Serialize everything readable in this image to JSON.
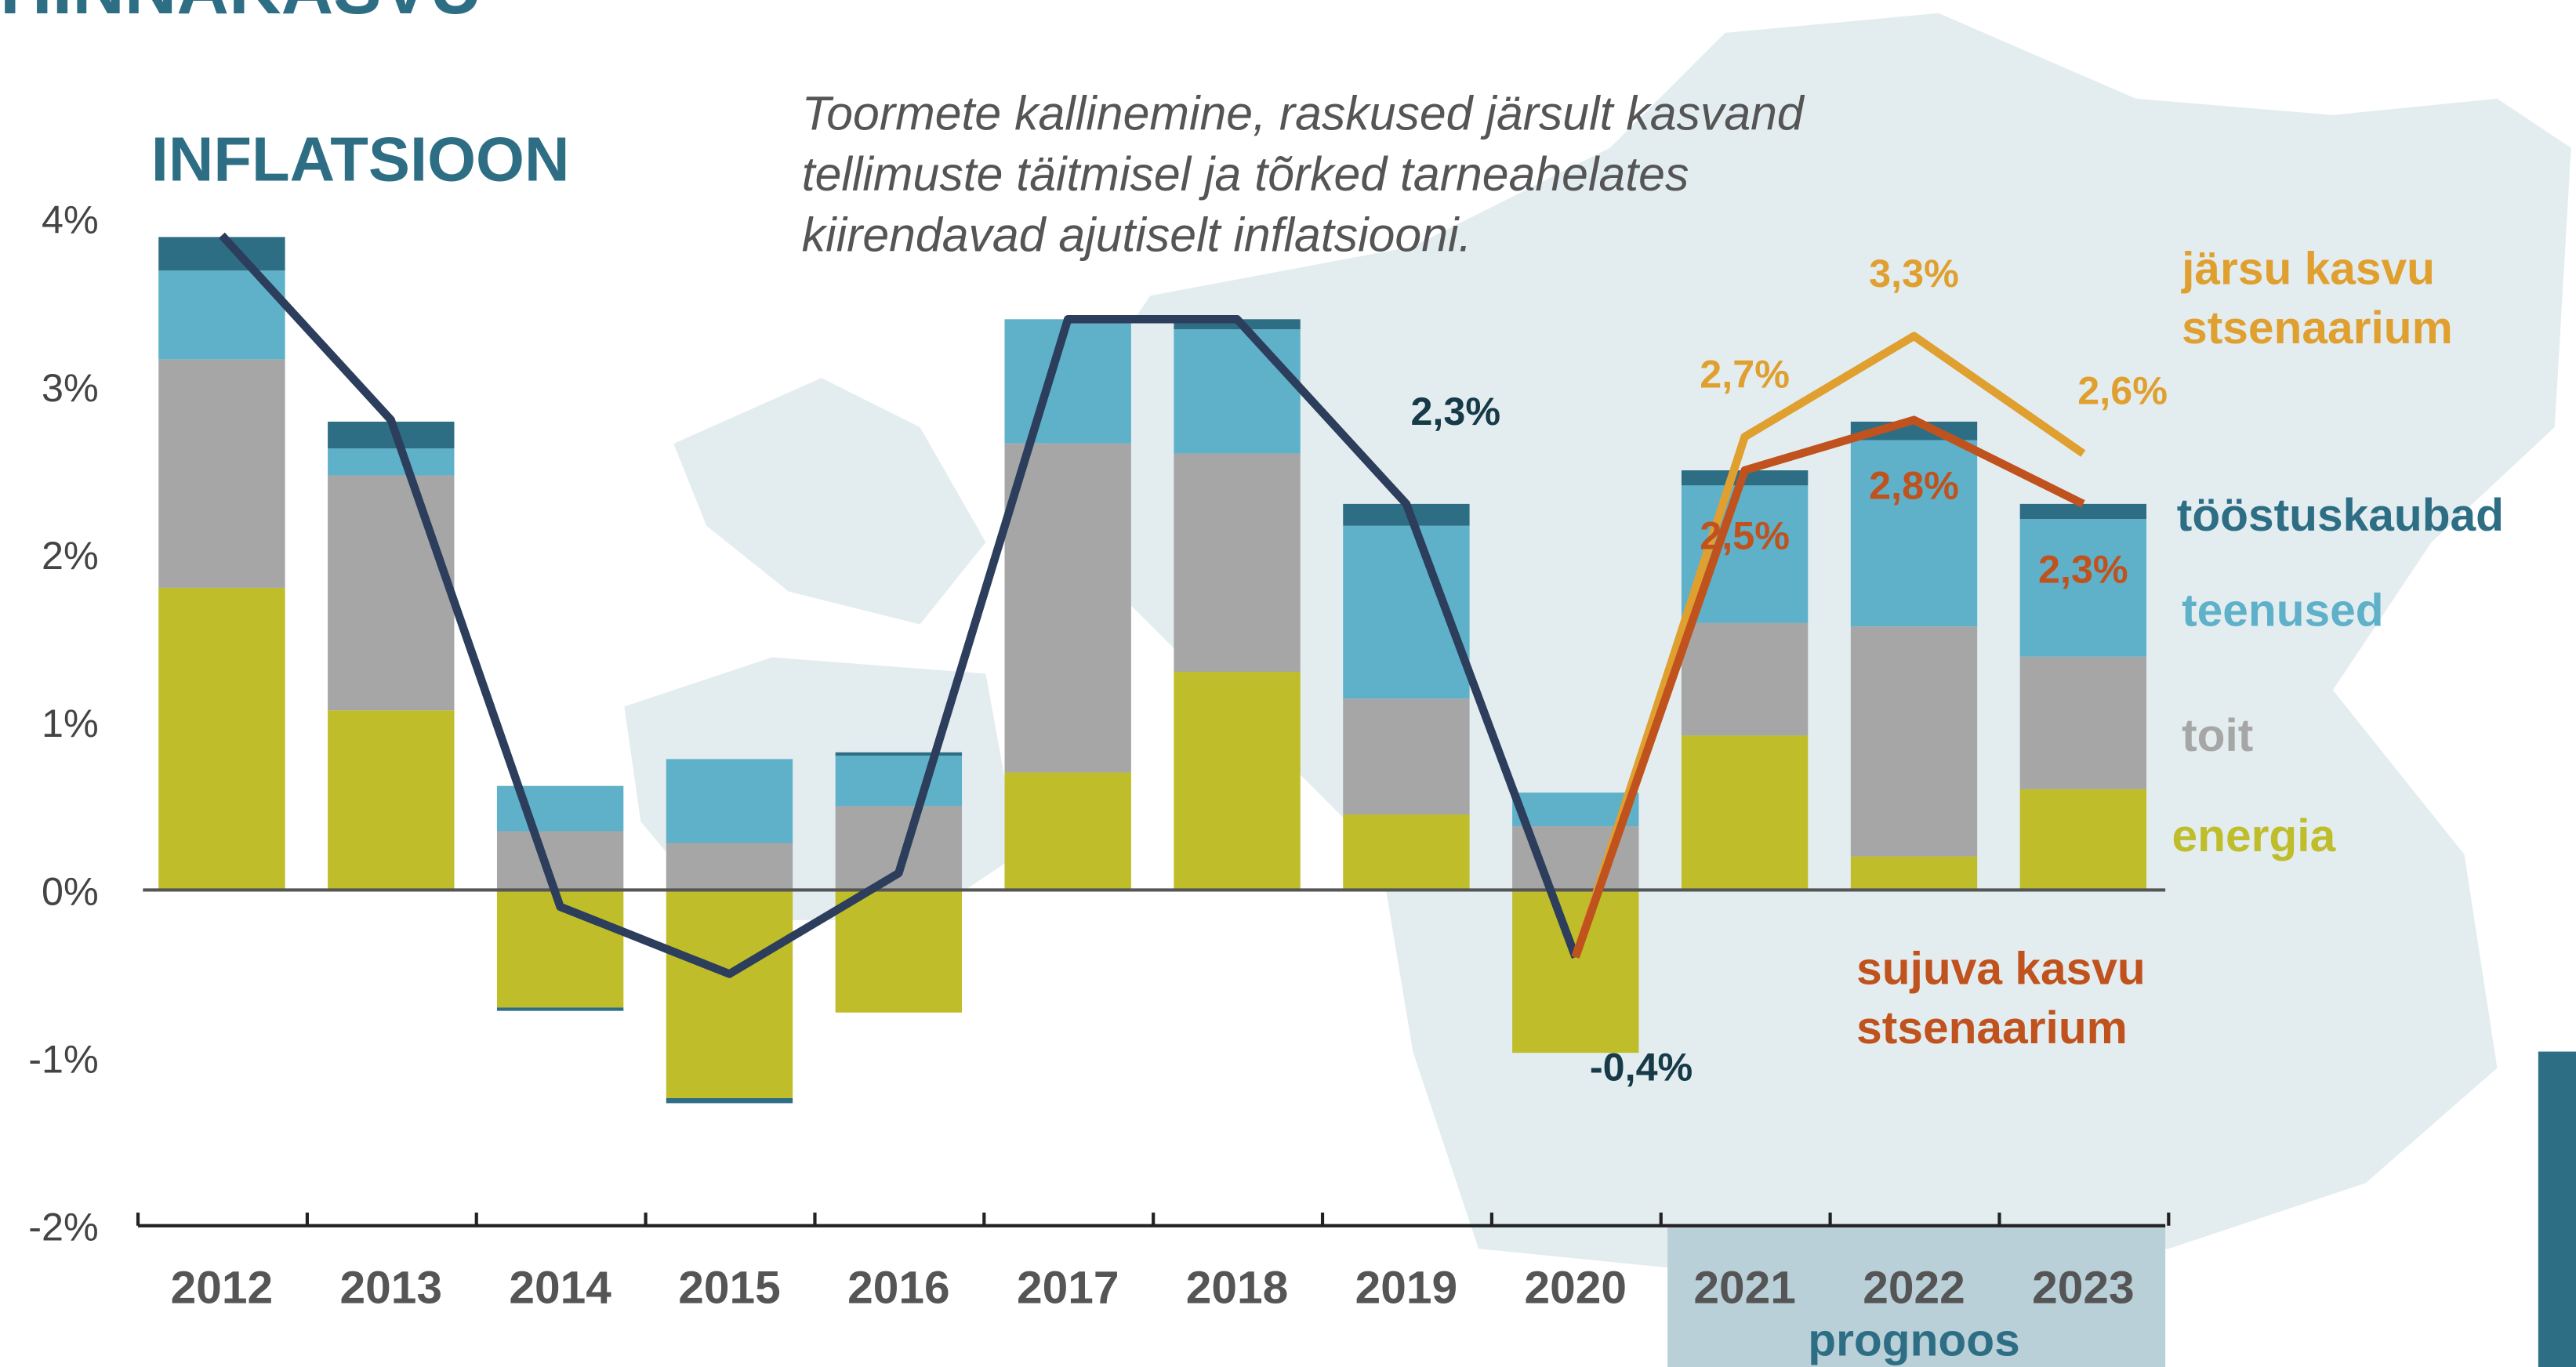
{
  "chart_data": {
    "type": "bar",
    "heading": "HINNAKASVU",
    "title": "INFLATSIOON",
    "subtitle": "Toormete kallinemine, raskused järsult kasvand\ntellimuste täitmisel ja tõrked tarneahelates\nkiirendavad ajutiselt inflatsiooni.",
    "forecast_label": "prognoos",
    "forecast_from": 9,
    "categories": [
      "2012",
      "2013",
      "2014",
      "2015",
      "2016",
      "2017",
      "2018",
      "2019",
      "2020",
      "2021",
      "2022",
      "2023"
    ],
    "ylim": [
      -2,
      4
    ],
    "yticks": [
      {
        "value": -2,
        "label": "-2%"
      },
      {
        "value": -1,
        "label": "-1%"
      },
      {
        "value": 0,
        "label": "0%"
      },
      {
        "value": 1,
        "label": "1%"
      },
      {
        "value": 2,
        "label": "2%"
      },
      {
        "value": 3,
        "label": "3%"
      },
      {
        "value": 4,
        "label": "4%"
      }
    ],
    "series": [
      {
        "name": "energia",
        "color": "#bfbd2a",
        "values": [
          1.8,
          1.07,
          -0.7,
          -1.24,
          -0.73,
          0.7,
          1.3,
          0.45,
          -0.97,
          0.92,
          0.2,
          0.6
        ]
      },
      {
        "name": "toit",
        "color": "#a6a6a6",
        "values": [
          1.36,
          1.4,
          0.35,
          0.28,
          0.5,
          1.96,
          1.3,
          0.69,
          0.38,
          0.67,
          1.37,
          0.79
        ]
      },
      {
        "name": "teenused",
        "color": "#5fb0c9",
        "values": [
          0.53,
          0.16,
          0.27,
          0.5,
          0.3,
          0.74,
          0.74,
          1.03,
          0.2,
          0.82,
          1.11,
          0.82
        ]
      },
      {
        "name": "tööstuskaubad",
        "color": "#2e6e85",
        "values": [
          0.2,
          0.16,
          -0.02,
          -0.03,
          0.02,
          0,
          0.06,
          0.13,
          0,
          0.09,
          0.11,
          0.09
        ]
      }
    ],
    "lines": [
      {
        "color": "#2c3e5c",
        "values": [
          3.9,
          2.8,
          -0.1,
          -0.5,
          0.1,
          3.4,
          3.4,
          2.3,
          -0.4,
          null,
          null,
          null
        ],
        "value_labels": [
          null,
          null,
          null,
          null,
          null,
          null,
          null,
          "2,3%",
          "-0,4%",
          null,
          null,
          null
        ],
        "label_color": "#173a48"
      },
      {
        "name": "järsu kasvu\nstsenaarium",
        "color": "#e0a030",
        "values": [
          null,
          null,
          null,
          null,
          null,
          null,
          null,
          null,
          -0.4,
          2.7,
          3.3,
          2.6
        ],
        "value_labels": [
          null,
          null,
          null,
          null,
          null,
          null,
          null,
          null,
          null,
          "2,7%",
          "3,3%",
          "2,6%"
        ],
        "label_color": "#e0a030"
      },
      {
        "name": "sujuva kasvu\nstsenaarium",
        "color": "#c0521e",
        "values": [
          null,
          null,
          null,
          null,
          null,
          null,
          null,
          null,
          -0.4,
          2.5,
          2.8,
          2.3
        ],
        "value_labels": [
          null,
          null,
          null,
          null,
          null,
          null,
          null,
          null,
          null,
          "2,5%",
          "2,8%",
          "2,3%"
        ],
        "label_color": "#c0521e"
      }
    ]
  }
}
